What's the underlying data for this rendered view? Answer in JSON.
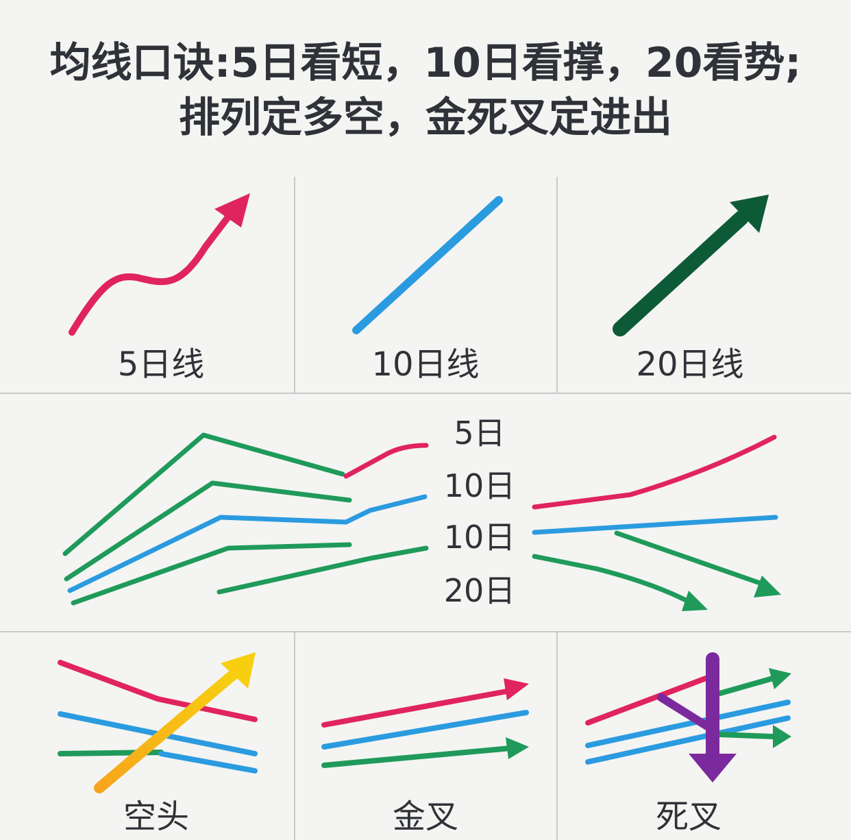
{
  "header": {
    "title_lines": [
      "均线口诀:5日看短，10日看撑，20看势;",
      "排列定多空，金死叉定进出"
    ]
  },
  "top_panels": [
    {
      "label": "5日线"
    },
    {
      "label": "10日线"
    },
    {
      "label": "20日线"
    }
  ],
  "middle_panel": {
    "labels": [
      "5日",
      "10日",
      "10日",
      "20日"
    ]
  },
  "bottom_panels": [
    {
      "label": "空头"
    },
    {
      "label": "金叉"
    },
    {
      "label": "死叉"
    }
  ]
}
